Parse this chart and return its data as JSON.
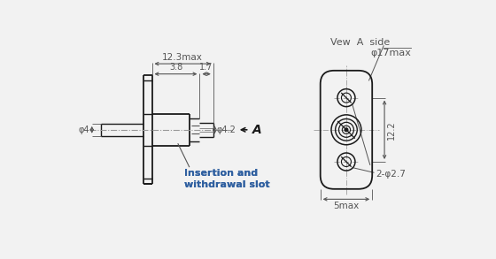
{
  "bg_color": "#f2f2f2",
  "line_color": "#1a1a1a",
  "dim_color": "#555555",
  "text_color": "#1a1a1a",
  "blue_color": "#3060a0",
  "annotations": {
    "dim_12_3": "12.3max",
    "dim_3_8": "3.8",
    "dim_1_7": "1.7",
    "dim_phi4": "φ4",
    "dim_phi4_2": "φ4.2",
    "label_A": "A",
    "view_label": "Vew  A  side",
    "dim_phi17": "φ17max",
    "dim_12_2": "12.2",
    "dim_5max": "5max",
    "dim_2phi27": "2-φ2.7",
    "insertion_label": "Insertion and\nwithdrawal slot"
  }
}
